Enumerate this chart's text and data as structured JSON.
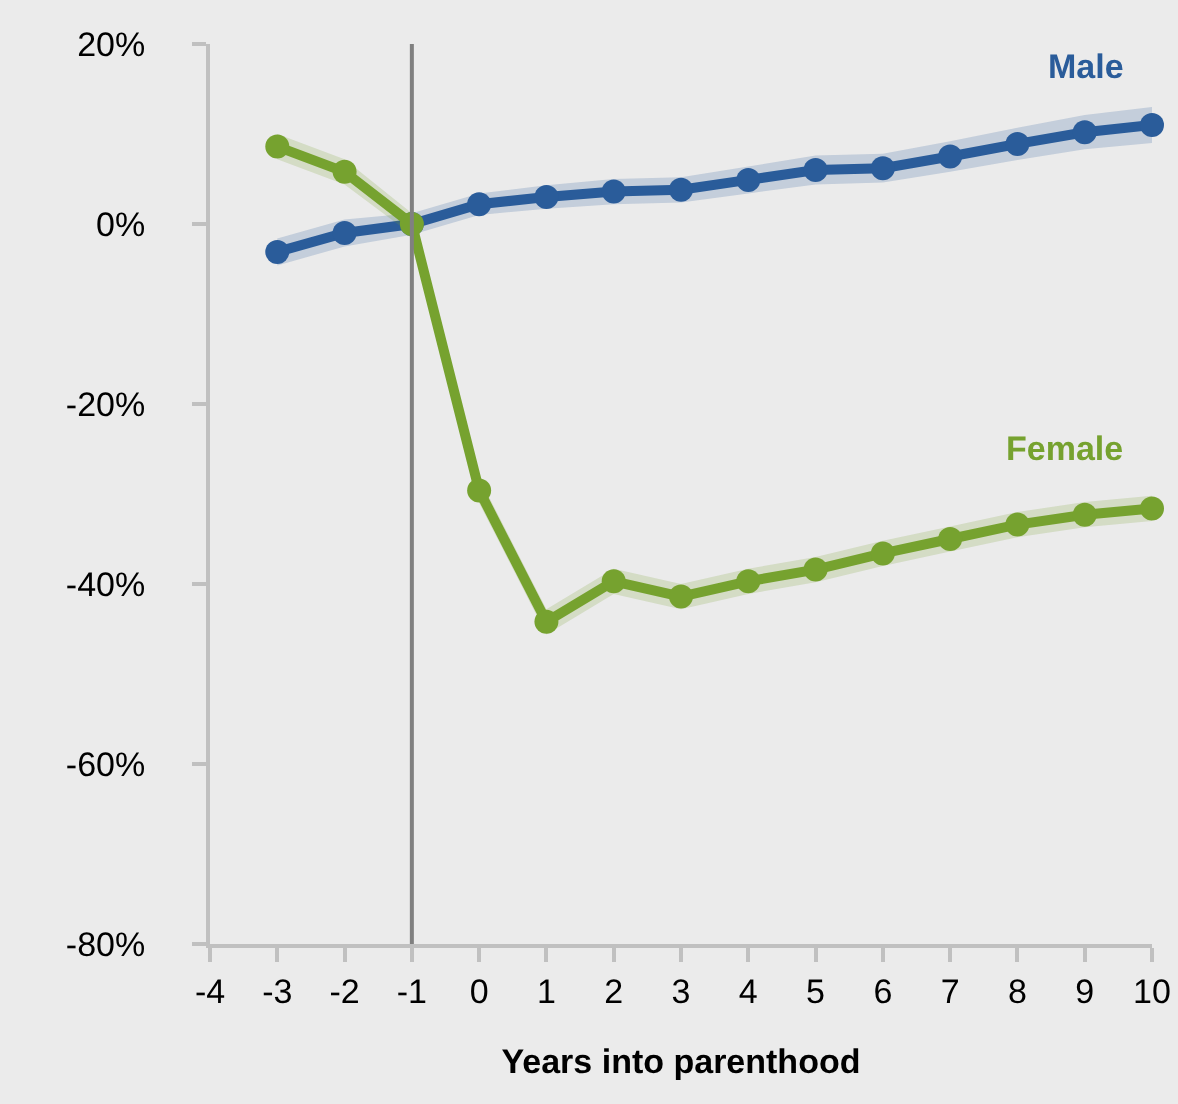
{
  "chart_data": {
    "type": "line",
    "xlabel": "Years into parenthood",
    "x": [
      -3,
      -2,
      -1,
      0,
      1,
      2,
      3,
      4,
      5,
      6,
      7,
      8,
      9,
      10
    ],
    "series": [
      {
        "name": "Male",
        "color": "#2a5c9a",
        "values": [
          -3.1,
          -1.0,
          0,
          2.2,
          3.0,
          3.6,
          3.8,
          4.9,
          6.0,
          6.2,
          7.5,
          8.9,
          10.2,
          11.0
        ],
        "lower": [
          -4.6,
          -2.5,
          -1.2,
          1.0,
          1.7,
          2.2,
          2.4,
          3.4,
          4.4,
          4.6,
          5.8,
          7.1,
          8.3,
          9.0
        ],
        "upper": [
          -1.6,
          0.5,
          1.2,
          3.4,
          4.3,
          5.0,
          5.2,
          6.4,
          7.6,
          7.8,
          9.2,
          10.7,
          12.1,
          13.0
        ]
      },
      {
        "name": "Female",
        "color": "#76a22f",
        "values": [
          8.6,
          5.8,
          0,
          -29.6,
          -44.2,
          -39.7,
          -41.4,
          -39.7,
          -38.4,
          -36.6,
          -35.0,
          -33.4,
          -32.3,
          -31.6
        ],
        "lower": [
          7.2,
          4.4,
          -1.2,
          -31.0,
          -45.6,
          -41.1,
          -42.8,
          -41.1,
          -39.8,
          -38.0,
          -36.4,
          -34.8,
          -33.7,
          -33.0
        ],
        "upper": [
          10.0,
          7.2,
          1.2,
          -28.2,
          -42.8,
          -38.3,
          -40.0,
          -38.3,
          -37.0,
          -35.2,
          -33.6,
          -32.0,
          -30.9,
          -30.2
        ]
      }
    ],
    "xlim": [
      -4,
      10
    ],
    "xticks": [
      -4,
      -3,
      -2,
      -1,
      0,
      1,
      2,
      3,
      4,
      5,
      6,
      7,
      8,
      9,
      10
    ],
    "ylim": [
      -80,
      20
    ],
    "yticks": [
      {
        "value": -80,
        "label": "-80%"
      },
      {
        "value": -60,
        "label": "-60%"
      },
      {
        "value": -40,
        "label": "-40%"
      },
      {
        "value": -20,
        "label": "-20%"
      },
      {
        "value": 0,
        "label": "0%"
      },
      {
        "value": 20,
        "label": "20%"
      }
    ],
    "ref_lines": [
      {
        "axis": "x",
        "value": -1,
        "color": "#808080"
      }
    ],
    "grid": false,
    "legend": false,
    "marker": "circle",
    "line_style": "solid"
  }
}
